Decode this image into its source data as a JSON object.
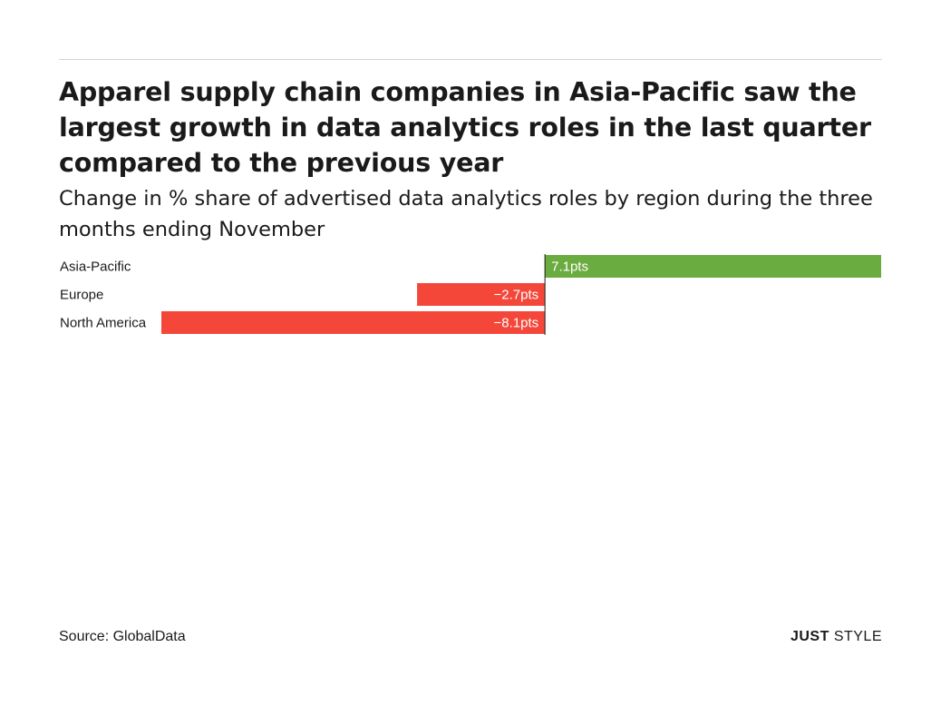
{
  "header": {
    "title": "Apparel supply chain companies in Asia-Pacific saw the largest growth in data analytics roles in the last quarter compared to the previous year",
    "subtitle": "Change in % share of advertised data analytics roles by region during the three months ending November"
  },
  "footer": {
    "source": "Source: GlobalData",
    "brand_bold": "JUST",
    "brand_regular": "STYLE"
  },
  "colors": {
    "positive": "#6aac3f",
    "negative": "#f4473a",
    "label_on_bar": "#ffffff",
    "axis": "#1a1a1a"
  },
  "chart_data": {
    "type": "bar",
    "orientation": "horizontal",
    "categories": [
      "Asia-Pacific",
      "Europe",
      "North America"
    ],
    "values": [
      7.1,
      -2.7,
      -8.1
    ],
    "data_labels": [
      "7.1pts",
      "−2.7pts",
      "−8.1pts"
    ],
    "unit": "pts",
    "xlim": [
      -8.1,
      7.1
    ],
    "grid": false,
    "legend": "none"
  }
}
